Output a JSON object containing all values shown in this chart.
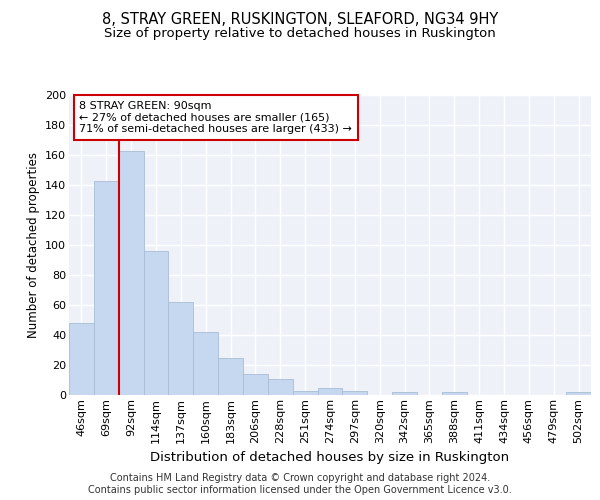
{
  "title": "8, STRAY GREEN, RUSKINGTON, SLEAFORD, NG34 9HY",
  "subtitle": "Size of property relative to detached houses in Ruskington",
  "xlabel": "Distribution of detached houses by size in Ruskington",
  "ylabel": "Number of detached properties",
  "bar_color": "#c5d8f0",
  "bar_edge_color": "#aabdd6",
  "categories": [
    "46sqm",
    "69sqm",
    "92sqm",
    "114sqm",
    "137sqm",
    "160sqm",
    "183sqm",
    "206sqm",
    "228sqm",
    "251sqm",
    "274sqm",
    "297sqm",
    "320sqm",
    "342sqm",
    "365sqm",
    "388sqm",
    "411sqm",
    "434sqm",
    "456sqm",
    "479sqm",
    "502sqm"
  ],
  "values": [
    48,
    143,
    163,
    96,
    62,
    42,
    25,
    14,
    11,
    3,
    5,
    3,
    0,
    2,
    0,
    2,
    0,
    0,
    0,
    0,
    2
  ],
  "annotation_text": "8 STRAY GREEN: 90sqm\n← 27% of detached houses are smaller (165)\n71% of semi-detached houses are larger (433) →",
  "annotation_border_color": "#cc0000",
  "red_line_color": "#cc0000",
  "footer": "Contains HM Land Registry data © Crown copyright and database right 2024.\nContains public sector information licensed under the Open Government Licence v3.0.",
  "ylim": [
    0,
    200
  ],
  "yticks": [
    0,
    20,
    40,
    60,
    80,
    100,
    120,
    140,
    160,
    180,
    200
  ],
  "background_color": "#eef2f8",
  "grid_color": "#ffffff",
  "title_fontsize": 10.5,
  "subtitle_fontsize": 9.5,
  "xlabel_fontsize": 9.5,
  "ylabel_fontsize": 8.5,
  "tick_fontsize": 8,
  "footer_fontsize": 7,
  "annot_fontsize": 8
}
